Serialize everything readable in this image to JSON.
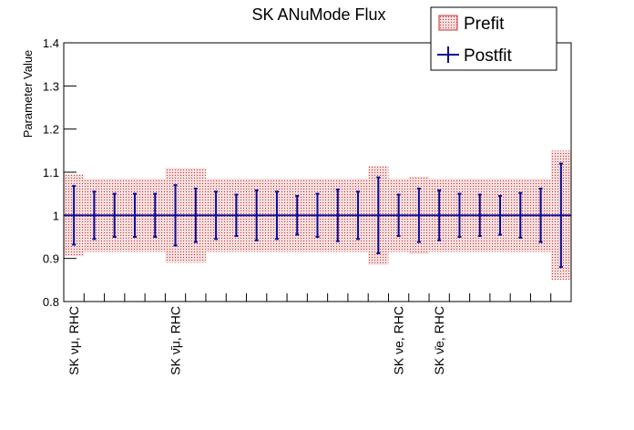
{
  "chart_data": {
    "type": "errorbar",
    "title": "SK ANuMode Flux",
    "y_label": "Parameter Value",
    "categories": [
      "SK νμ, RHC",
      null,
      null,
      null,
      null,
      "SK ν̄μ, RHC",
      null,
      null,
      null,
      null,
      null,
      null,
      null,
      null,
      null,
      null,
      "SK νe, RHC",
      null,
      "SK ν̄e, RHC",
      null,
      null,
      null,
      null,
      null,
      null
    ],
    "series": [
      {
        "name": "Prefit",
        "style": "band",
        "color": "#c83232",
        "values": [
          1,
          1,
          1,
          1,
          1,
          1,
          1,
          1,
          1,
          1,
          1,
          1,
          1,
          1,
          1,
          1,
          1,
          1,
          1,
          1,
          1,
          1,
          1,
          1,
          1
        ],
        "errors": [
          0.095,
          0.085,
          0.085,
          0.085,
          0.085,
          0.11,
          0.11,
          0.085,
          0.085,
          0.085,
          0.085,
          0.085,
          0.085,
          0.085,
          0.085,
          0.115,
          0.085,
          0.09,
          0.085,
          0.085,
          0.085,
          0.085,
          0.085,
          0.085,
          0.15
        ]
      },
      {
        "name": "Postfit",
        "style": "errorbar",
        "color": "#0a0a99",
        "values": [
          1,
          1,
          1,
          1,
          1,
          1,
          1,
          1,
          1,
          1,
          1,
          1,
          1,
          1,
          1,
          1,
          1,
          1,
          1,
          1,
          1,
          1,
          1,
          1,
          1
        ],
        "errors": [
          0.068,
          0.055,
          0.05,
          0.05,
          0.05,
          0.07,
          0.062,
          0.055,
          0.048,
          0.058,
          0.055,
          0.045,
          0.05,
          0.06,
          0.055,
          0.088,
          0.048,
          0.062,
          0.058,
          0.05,
          0.048,
          0.045,
          0.052,
          0.062,
          0.12
        ]
      }
    ],
    "ylim": [
      0.8,
      1.4
    ],
    "yticks": [
      0.8,
      0.9,
      1,
      1.1,
      1.2,
      1.3,
      1.4
    ]
  }
}
